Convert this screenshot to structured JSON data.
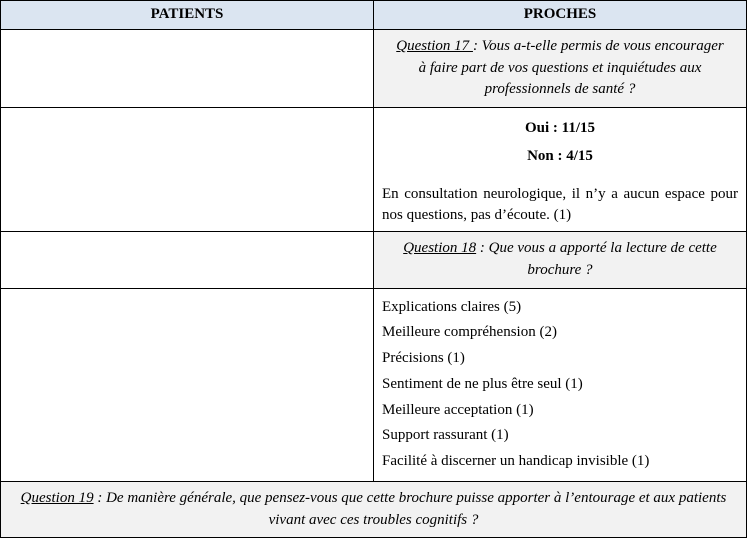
{
  "header": {
    "left": "PATIENTS",
    "right": "PROCHES"
  },
  "q17": {
    "label": "Question 17 ",
    "text": ": Vous a-t-elle permis de vous encourager à faire part de vos questions et inquiétudes aux professionnels de santé ?",
    "stat_yes": "Oui : 11/15",
    "stat_no": "Non : 4/15",
    "comment": "En consultation neurologique, il n’y a aucun espace pour nos questions, pas d’écoute. (1)"
  },
  "q18": {
    "label": "Question 18",
    "text": " : Que vous a apporté la lecture de cette brochure ?",
    "answers": [
      "Explications claires (5)",
      "Meilleure compréhension (2)",
      "Précisions (1)",
      "Sentiment de ne plus être seul (1)",
      "Meilleure acceptation (1)",
      "Support rassurant (1)",
      "Facilité à discerner un handicap invisible (1)"
    ]
  },
  "q19": {
    "label": "Question 19",
    "text": " : De manière générale, que pensez-vous que cette brochure puisse apporter à l’entourage et aux patients vivant avec ces troubles cognitifs ?"
  }
}
